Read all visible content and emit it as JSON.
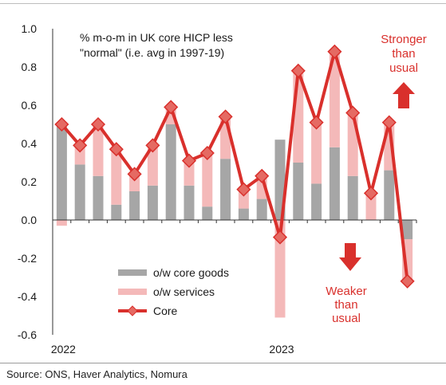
{
  "chart_data": {
    "type": "bar",
    "title_lines": [
      "% m-o-m in UK core HICP less",
      "\"normal\" (i.e. avg in 1997-19)"
    ],
    "ylim": [
      -0.6,
      1.0
    ],
    "yticks": [
      "1.0",
      "0.8",
      "0.6",
      "0.4",
      "0.2",
      "0.0",
      "-0.2",
      "-0.4",
      "-0.6"
    ],
    "ytick_values": [
      1.0,
      0.8,
      0.6,
      0.4,
      0.2,
      0.0,
      -0.2,
      -0.4,
      -0.6
    ],
    "x_labels": [
      {
        "index": 0,
        "text": "2022"
      },
      {
        "index": 12,
        "text": "2023"
      }
    ],
    "stacked": true,
    "series": [
      {
        "name": "o/w core goods",
        "kind": "bar",
        "color": "#a6a6a6",
        "values": [
          0.49,
          0.29,
          0.23,
          0.08,
          0.15,
          0.18,
          0.5,
          0.18,
          0.07,
          0.32,
          0.06,
          0.11,
          0.42,
          0.3,
          0.19,
          0.38,
          0.23,
          0.0,
          0.26,
          -0.1
        ]
      },
      {
        "name": "o/w services",
        "kind": "bar",
        "color": "#f4b9b9",
        "values": [
          -0.03,
          0.1,
          0.27,
          0.29,
          0.09,
          0.21,
          0.09,
          0.13,
          0.28,
          0.22,
          0.1,
          0.12,
          -0.51,
          0.48,
          0.32,
          0.5,
          0.33,
          0.14,
          0.25,
          -0.22
        ]
      },
      {
        "name": "Core",
        "kind": "line",
        "color": "#d9302c",
        "values": [
          0.5,
          0.39,
          0.5,
          0.37,
          0.24,
          0.39,
          0.59,
          0.31,
          0.35,
          0.54,
          0.16,
          0.23,
          -0.09,
          0.78,
          0.51,
          0.88,
          0.56,
          0.14,
          0.51,
          -0.32
        ]
      }
    ],
    "annotations": {
      "stronger": [
        "Stronger",
        "than",
        "usual"
      ],
      "weaker": [
        "Weaker",
        "than",
        "usual"
      ]
    },
    "legend_placement": "lower-left",
    "grid": false
  },
  "source": "Source: ONS, Haver Analytics, Nomura",
  "colors": {
    "accent": "#d9302c",
    "goods": "#a6a6a6",
    "services": "#f4b9b9"
  }
}
